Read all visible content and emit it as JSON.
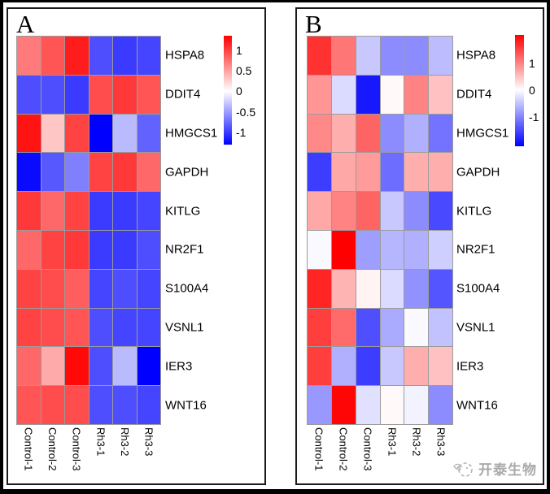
{
  "chart_data": [
    {
      "type": "heatmap",
      "panel_label": "A",
      "rows": [
        "HSPA8",
        "DDIT4",
        "HMGCS1",
        "GAPDH",
        "KITLG",
        "NR2F1",
        "S100A4",
        "VSNL1",
        "IER3",
        "WNT16"
      ],
      "columns": [
        "Control-1",
        "Control-2",
        "Control-3",
        "Rh3-1",
        "Rh3-2",
        "Rh3-3"
      ],
      "values": [
        [
          0.7,
          0.9,
          1.2,
          -0.9,
          -1.0,
          -0.95
        ],
        [
          -0.9,
          -0.9,
          -1.0,
          0.95,
          1.05,
          0.9
        ],
        [
          1.25,
          0.3,
          1.0,
          -1.3,
          -0.35,
          -0.8
        ],
        [
          -1.25,
          -0.85,
          -0.65,
          1.0,
          1.05,
          0.8
        ],
        [
          1.05,
          0.8,
          1.0,
          -1.0,
          -1.0,
          -0.95
        ],
        [
          0.8,
          1.0,
          1.05,
          -1.0,
          -1.0,
          -0.9
        ],
        [
          1.0,
          0.95,
          0.85,
          -0.95,
          -0.9,
          -0.95
        ],
        [
          1.0,
          0.95,
          0.9,
          -0.9,
          -0.95,
          -0.95
        ],
        [
          0.8,
          0.45,
          1.3,
          -0.9,
          -0.35,
          -1.3
        ],
        [
          0.9,
          0.95,
          0.95,
          -0.9,
          -0.9,
          -0.95
        ]
      ],
      "scale": {
        "vmax": 1.35,
        "vmin": -1.3
      },
      "colorbar_ticks": [
        {
          "label": "1",
          "value": 1
        },
        {
          "label": "0.5",
          "value": 0.5
        },
        {
          "label": "0",
          "value": 0
        },
        {
          "label": "-0.5",
          "value": -0.5
        },
        {
          "label": "-1",
          "value": -1
        }
      ],
      "colormap": {
        "high": "#FF0000",
        "mid": "#FFFFFF",
        "low": "#0000FF"
      },
      "grid_line_color": "#9B9B9B",
      "legend_position": "right"
    },
    {
      "type": "heatmap",
      "panel_label": "B",
      "rows": [
        "HSPA8",
        "DDIT4",
        "HMGCS1",
        "GAPDH",
        "KITLG",
        "NR2F1",
        "S100A4",
        "VSNL1",
        "IER3",
        "WNT16"
      ],
      "columns": [
        "Control-1",
        "Control-2",
        "Control-3",
        "Rh3-1",
        "Rh3-2",
        "Rh3-3"
      ],
      "values": [
        [
          1.65,
          1.1,
          -0.45,
          -0.95,
          -0.95,
          -0.55
        ],
        [
          0.85,
          -0.3,
          -1.9,
          0.05,
          1.0,
          0.5
        ],
        [
          0.95,
          0.65,
          1.25,
          -0.95,
          -0.65,
          -1.15
        ],
        [
          -1.6,
          0.7,
          0.8,
          -1.2,
          0.65,
          0.65
        ],
        [
          0.7,
          1.0,
          1.25,
          -0.45,
          -0.95,
          -1.5
        ],
        [
          -0.05,
          2.05,
          -0.8,
          -0.6,
          -0.65,
          -0.4
        ],
        [
          1.75,
          0.6,
          0.1,
          -0.3,
          -0.9,
          -1.4
        ],
        [
          1.55,
          1.2,
          -1.45,
          -0.7,
          -0.05,
          -0.5
        ],
        [
          1.55,
          -0.65,
          -1.6,
          -0.45,
          0.65,
          0.5
        ],
        [
          -0.85,
          2.0,
          -0.25,
          0.05,
          -0.1,
          -0.95
        ]
      ],
      "scale": {
        "vmax": 2.05,
        "vmin": -2.1
      },
      "colorbar_ticks": [
        {
          "label": "1",
          "value": 1
        },
        {
          "label": "0",
          "value": 0
        },
        {
          "label": "-1",
          "value": -1
        }
      ],
      "colormap": {
        "high": "#FF0000",
        "mid": "#FFFFFF",
        "low": "#0000FF"
      },
      "grid_line_color": "#9B9B9B",
      "legend_position": "right"
    }
  ],
  "watermark": {
    "text": "开泰生物",
    "icon": "bird-logo-icon",
    "color": "#A9A9A9"
  }
}
